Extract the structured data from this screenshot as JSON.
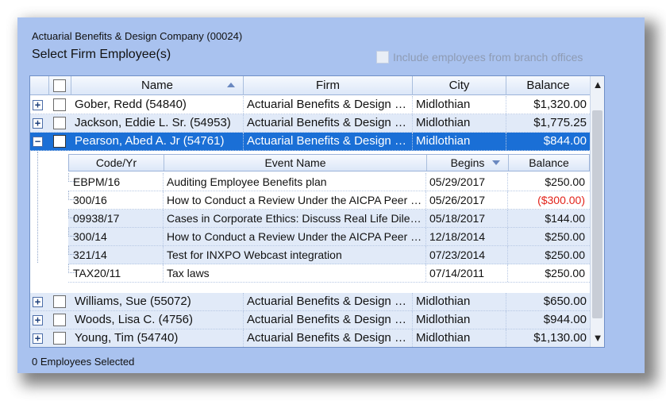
{
  "company": "Actuarial Benefits & Design Company (00024)",
  "title": "Select Firm Employee(s)",
  "branch_label": "Include employees from branch offices",
  "grid": {
    "headers": {
      "name": "Name",
      "firm": "Firm",
      "city": "City",
      "balance": "Balance"
    },
    "rows": [
      {
        "expander": "+",
        "name": "Gober, Redd (54840)",
        "firm": "Actuarial Benefits & Design Company",
        "city": "Midlothian",
        "balance": "$1,320.00"
      },
      {
        "expander": "+",
        "name": "Jackson, Eddie L. Sr. (54953)",
        "firm": "Actuarial Benefits & Design Company",
        "city": "Midlothian",
        "balance": "$1,775.25"
      },
      {
        "expander": "−",
        "name": "Pearson, Abed A. Jr (54761)",
        "firm": "Actuarial Benefits & Design Company",
        "city": "Midlothian",
        "balance": "$844.00"
      },
      {
        "expander": "+",
        "name": "Williams, Sue (55072)",
        "firm": "Actuarial Benefits & Design Company",
        "city": "Midlothian",
        "balance": "$650.00"
      },
      {
        "expander": "+",
        "name": "Woods, Lisa C. (4756)",
        "firm": "Actuarial Benefits & Design Company",
        "city": "Midlothian",
        "balance": "$944.00"
      },
      {
        "expander": "+",
        "name": "Young, Tim (54740)",
        "firm": "Actuarial Benefits & Design Company",
        "city": "Midlothian",
        "balance": "$1,130.00"
      }
    ]
  },
  "detail": {
    "headers": {
      "code": "Code/Yr",
      "event": "Event Name",
      "begins": "Begins",
      "balance": "Balance"
    },
    "rows": [
      {
        "code": "EBPM/16",
        "event": "Auditing Employee Benefits plan",
        "begins": "05/29/2017",
        "balance": "$250.00"
      },
      {
        "code": "300/16",
        "event": "How to Conduct a Review Under the AICPA Peer Review Standards",
        "begins": "05/26/2017",
        "balance": "($300.00)"
      },
      {
        "code": "09938/17",
        "event": "Cases in Corporate Ethics: Discuss Real Life Dilemmas",
        "begins": "05/18/2017",
        "balance": "$144.00"
      },
      {
        "code": "300/14",
        "event": "How to Conduct a Review Under the AICPA Peer Review Standards",
        "begins": "12/18/2014",
        "balance": "$250.00"
      },
      {
        "code": "321/14",
        "event": "Test for INXPO Webcast integration",
        "begins": "07/23/2014",
        "balance": "$250.00"
      },
      {
        "code": "TAX20/11",
        "event": "Tax laws",
        "begins": "07/14/2011",
        "balance": "$250.00"
      }
    ]
  },
  "scroll": {
    "up_icon": "▲",
    "down_icon": "▼"
  },
  "status": "0 Employees Selected",
  "colors": {
    "panel": "#a9c2ef",
    "selected_row": "#1a6fd6",
    "negative": "#e2231a"
  }
}
